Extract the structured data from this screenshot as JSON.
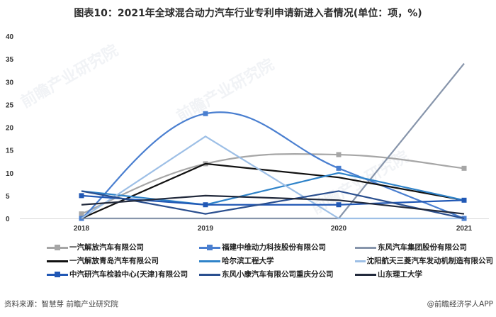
{
  "title": "图表10：2021年全球混合动力汽车行业专利申请新进入者情况(单位：项，%)",
  "chart_data": {
    "type": "line",
    "title": "图表10：2021年全球混合动力汽车行业专利申请新进入者情况(单位：项，%)",
    "xlabel": "",
    "ylabel": "",
    "categories": [
      "2018",
      "2019",
      "2020",
      "2021"
    ],
    "ylim": [
      0,
      40
    ],
    "yticks": [
      0,
      5,
      10,
      15,
      20,
      25,
      30,
      35,
      40
    ],
    "grid": false,
    "legend_position": "bottom",
    "series": [
      {
        "name": "一汽解放汽车有限公司",
        "values": [
          1,
          12,
          14,
          11
        ],
        "color": "#a6a6a6",
        "marker": "square",
        "smooth": true
      },
      {
        "name": "福建中维动力科技股份有限公司",
        "values": [
          0,
          23,
          11,
          0
        ],
        "color": "#4a7fd0",
        "marker": "square",
        "smooth": true
      },
      {
        "name": "东风汽车集团股份有限公司",
        "values": [
          0,
          0,
          0,
          34
        ],
        "color": "#8795ab",
        "marker": "none",
        "smooth": false
      },
      {
        "name": "一汽解放青岛汽车有限公司",
        "values": [
          0,
          12,
          9,
          4
        ],
        "color": "#111111",
        "marker": "none",
        "smooth": false
      },
      {
        "name": "哈尔滨工程大学",
        "values": [
          6,
          3,
          10,
          4
        ],
        "color": "#2f83c9",
        "marker": "none",
        "smooth": false
      },
      {
        "name": "沈阳航天三菱汽车发动机制造有限公司",
        "values": [
          0,
          18,
          0,
          0
        ],
        "color": "#9dbfe6",
        "marker": "none",
        "smooth": false
      },
      {
        "name": "中汽研汽车检验中心(天津)有限公司",
        "values": [
          5,
          3,
          3,
          4
        ],
        "color": "#2158b5",
        "marker": "square",
        "smooth": false
      },
      {
        "name": "东风小康汽车有限公司重庆分公司",
        "values": [
          6,
          1,
          6,
          0
        ],
        "color": "#2a4f8f",
        "marker": "none",
        "smooth": false
      },
      {
        "name": "山东理工大学",
        "values": [
          3,
          5,
          4,
          1
        ],
        "color": "#222a3c",
        "marker": "none",
        "smooth": false
      }
    ]
  },
  "legend": {
    "items": [
      "一汽解放汽车有限公司",
      "福建中维动力科技股份有限公司",
      "东风汽车集团股份有限公司",
      "一汽解放青岛汽车有限公司",
      "哈尔滨工程大学",
      "沈阳航天三菱汽车发动机制造有限公司",
      "中汽研汽车检验中心(天津)有限公司",
      "东风小康汽车有限公司重庆分公司",
      "山东理工大学"
    ]
  },
  "footer": {
    "source": "资料来源：智慧芽 前瞻产业研究院",
    "credit": "@前瞻经济学人APP"
  },
  "watermark": "前瞻产业研究院"
}
